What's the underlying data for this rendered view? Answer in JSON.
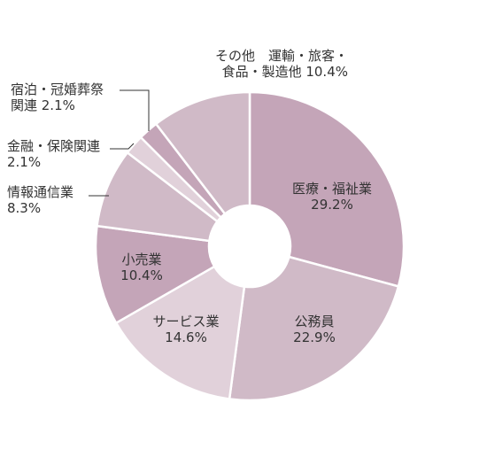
{
  "chart_data": {
    "type": "pie",
    "donut": true,
    "series": [
      {
        "values": [
          29.2,
          22.9,
          14.6,
          10.4,
          8.3,
          2.1,
          2.1,
          10.4
        ],
        "categories": [
          "医療・福祉業",
          "公務員",
          "サービス業",
          "小売業",
          "情報通信業",
          "金融・保険関連",
          "宿泊・冠婚葬祭関連",
          "その他 運輸・旅客・食品・製造他"
        ]
      }
    ],
    "slices": [
      {
        "label_lines": [
          "医療・福祉業"
        ],
        "value_text": "29.2%",
        "value": 29.2,
        "color": "#c4a5b8"
      },
      {
        "label_lines": [
          "公務員"
        ],
        "value_text": "22.9%",
        "value": 22.9,
        "color": "#d0bac7"
      },
      {
        "label_lines": [
          "サービス業"
        ],
        "value_text": "14.6%",
        "value": 14.6,
        "color": "#e1d1da"
      },
      {
        "label_lines": [
          "小売業"
        ],
        "value_text": "10.4%",
        "value": 10.4,
        "color": "#c4a5b8"
      },
      {
        "label_lines": [
          "情報通信業"
        ],
        "value_text": "8.3%",
        "value": 8.3,
        "color": "#d0bac7"
      },
      {
        "label_lines": [
          "金融・保険関連"
        ],
        "value_text": "2.1%",
        "value": 2.1,
        "color": "#e1d1da"
      },
      {
        "label_lines": [
          "宿泊・冠婚葬祭",
          "関連"
        ],
        "value_text": "2.1%",
        "value": 2.1,
        "color": "#c4a5b8"
      },
      {
        "label_lines": [
          "その他　運輸・旅客・",
          "食品・製造他"
        ],
        "value_text": "10.4%",
        "value": 10.4,
        "color": "#d0bac7"
      }
    ]
  }
}
